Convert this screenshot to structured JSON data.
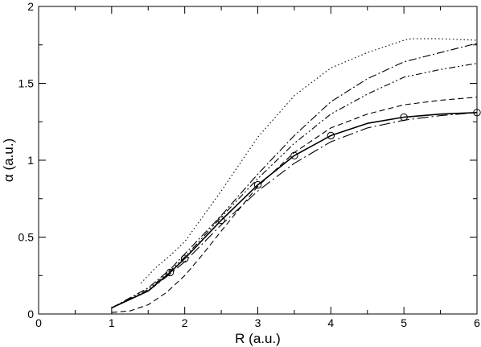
{
  "chart_data": {
    "type": "line",
    "title": "",
    "xlabel": "R (a.u.)",
    "ylabel": "α (a.u.)",
    "xlim": [
      0,
      6
    ],
    "ylim": [
      0,
      2
    ],
    "xticks": [
      0,
      1,
      2,
      3,
      4,
      5,
      6
    ],
    "yticks": [
      0,
      0.5,
      1,
      1.5,
      2
    ],
    "xtick_labels": [
      "0",
      "1",
      "2",
      "3",
      "4",
      "5",
      "6"
    ],
    "ytick_labels": [
      "0",
      "0.5",
      "1",
      "1.5",
      "2"
    ],
    "grid": false,
    "legend": "none",
    "series": [
      {
        "style": "solid",
        "color": "#000000",
        "x": [
          1.0,
          1.5,
          1.8,
          2.0,
          2.5,
          3.0,
          3.5,
          4.0,
          4.5,
          5.0,
          5.5,
          6.0
        ],
        "y": [
          0.04,
          0.15,
          0.27,
          0.36,
          0.61,
          0.84,
          1.03,
          1.16,
          1.24,
          1.28,
          1.3,
          1.31
        ]
      },
      {
        "style": "dotted",
        "color": "#000000",
        "x": [
          1.4,
          1.6,
          1.8,
          2.0,
          2.5,
          3.0,
          3.5,
          4.0,
          4.5,
          5.0,
          5.1,
          5.5,
          6.0
        ],
        "y": [
          0.2,
          0.3,
          0.38,
          0.47,
          0.8,
          1.15,
          1.42,
          1.6,
          1.7,
          1.78,
          1.79,
          1.79,
          1.78
        ]
      },
      {
        "style": "dashed",
        "color": "#000000",
        "x": [
          1.0,
          1.25,
          1.5,
          1.75,
          2.0,
          2.25,
          2.5,
          3.0,
          3.5,
          4.0,
          4.5,
          5.0,
          5.5,
          6.0
        ],
        "y": [
          0.01,
          0.02,
          0.06,
          0.14,
          0.25,
          0.39,
          0.54,
          0.83,
          1.05,
          1.21,
          1.3,
          1.36,
          1.39,
          1.41
        ]
      },
      {
        "style": "dash-dot",
        "color": "#000000",
        "x": [
          1.0,
          1.5,
          1.8,
          2.0,
          2.5,
          3.0,
          3.5,
          4.0,
          4.5,
          5.0,
          5.5,
          6.0
        ],
        "y": [
          0.04,
          0.17,
          0.29,
          0.39,
          0.64,
          0.91,
          1.16,
          1.38,
          1.53,
          1.64,
          1.7,
          1.76
        ]
      },
      {
        "style": "dash-dot-dot",
        "color": "#000000",
        "x": [
          1.0,
          1.5,
          1.8,
          2.0,
          2.5,
          3.0,
          3.5,
          4.0,
          4.5,
          5.0,
          5.5,
          6.0
        ],
        "y": [
          0.04,
          0.16,
          0.28,
          0.37,
          0.63,
          0.88,
          1.11,
          1.3,
          1.43,
          1.54,
          1.59,
          1.63
        ]
      },
      {
        "style": "dash-dot-long",
        "color": "#000000",
        "x": [
          1.0,
          1.5,
          1.8,
          2.0,
          2.5,
          3.0,
          3.5,
          4.0,
          4.5,
          5.0,
          5.5,
          6.0
        ],
        "y": [
          0.04,
          0.15,
          0.26,
          0.34,
          0.58,
          0.8,
          0.98,
          1.12,
          1.21,
          1.26,
          1.29,
          1.31
        ]
      }
    ],
    "markers": {
      "shape": "open-circle",
      "x": [
        1.8,
        2.0,
        2.5,
        3.0,
        3.5,
        4.0,
        5.0,
        6.0
      ],
      "y": [
        0.27,
        0.36,
        0.61,
        0.84,
        1.03,
        1.16,
        1.28,
        1.31
      ]
    }
  }
}
